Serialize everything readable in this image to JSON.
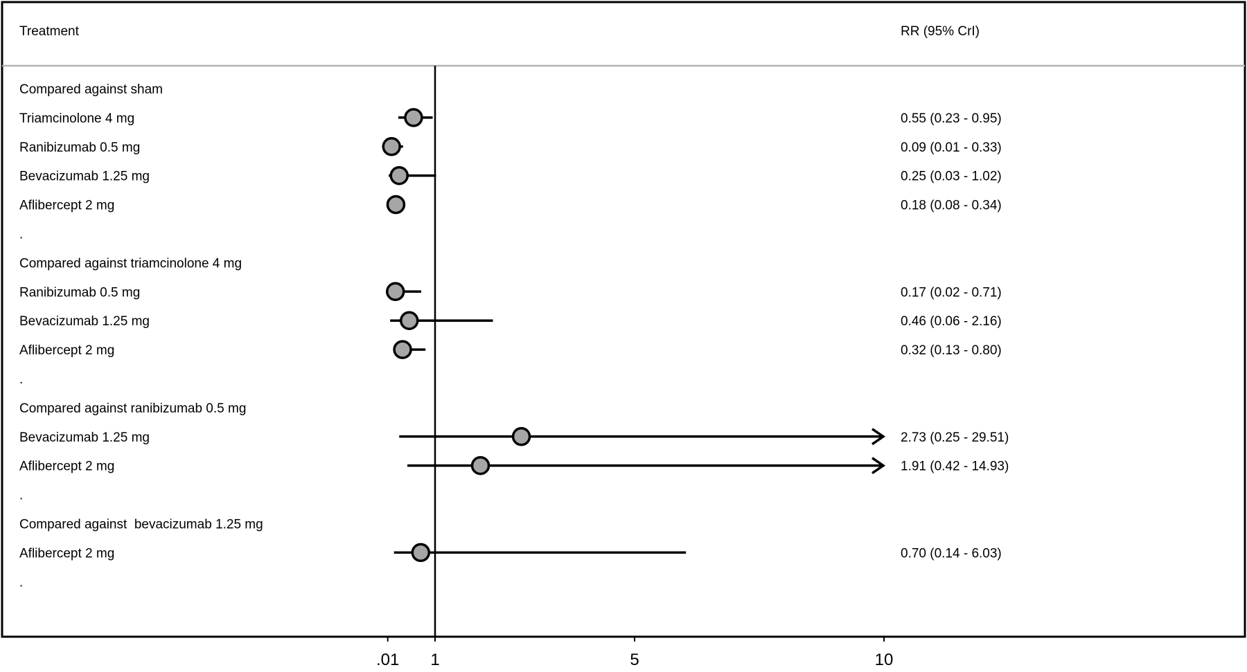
{
  "chart_data": {
    "type": "forest",
    "header": {
      "treatment": "Treatment",
      "estimate": "RR (95% CrI)"
    },
    "x_ticks": [
      {
        "value": 0.01,
        "label": ".01"
      },
      {
        "value": 1,
        "label": "1"
      },
      {
        "value": 5,
        "label": "5"
      },
      {
        "value": 10,
        "label": "10"
      }
    ],
    "reference_line": 1,
    "xlim": [
      0,
      10
    ],
    "rows": [
      {
        "type": "group",
        "label": "Compared against sham"
      },
      {
        "type": "item",
        "label": "Triamcinolone 4 mg",
        "rr": 0.55,
        "lo": 0.23,
        "hi": 0.95,
        "text": "0.55 (0.23 - 0.95)"
      },
      {
        "type": "item",
        "label": "Ranibizumab 0.5 mg",
        "rr": 0.09,
        "lo": 0.01,
        "hi": 0.33,
        "text": "0.09 (0.01 - 0.33)"
      },
      {
        "type": "item",
        "label": "Bevacizumab 1.25 mg",
        "rr": 0.25,
        "lo": 0.03,
        "hi": 1.02,
        "text": "0.25 (0.03 - 1.02)"
      },
      {
        "type": "item",
        "label": "Aflibercept 2 mg",
        "rr": 0.18,
        "lo": 0.08,
        "hi": 0.34,
        "text": "0.18 (0.08 - 0.34)"
      },
      {
        "type": "spacer",
        "label": "."
      },
      {
        "type": "group",
        "label": "Compared against triamcinolone 4 mg"
      },
      {
        "type": "item",
        "label": "Ranibizumab 0.5 mg",
        "rr": 0.17,
        "lo": 0.02,
        "hi": 0.71,
        "text": "0.17 (0.02 - 0.71)"
      },
      {
        "type": "item",
        "label": "Bevacizumab 1.25 mg",
        "rr": 0.46,
        "lo": 0.06,
        "hi": 2.16,
        "text": "0.46 (0.06 - 2.16)"
      },
      {
        "type": "item",
        "label": "Aflibercept 2 mg",
        "rr": 0.32,
        "lo": 0.13,
        "hi": 0.8,
        "text": "0.32 (0.13 - 0.80)"
      },
      {
        "type": "spacer",
        "label": "."
      },
      {
        "type": "group",
        "label": "Compared against ranibizumab 0.5 mg"
      },
      {
        "type": "item",
        "label": "Bevacizumab 1.25 mg",
        "rr": 2.73,
        "lo": 0.25,
        "hi": 29.51,
        "text": "2.73 (0.25 - 29.51)",
        "arrow_right": true
      },
      {
        "type": "item",
        "label": "Aflibercept 2 mg",
        "rr": 1.91,
        "lo": 0.42,
        "hi": 14.93,
        "text": "1.91 (0.42 - 14.93)",
        "arrow_right": true
      },
      {
        "type": "spacer",
        "label": "."
      },
      {
        "type": "group",
        "label": "Compared against  bevacizumab 1.25 mg"
      },
      {
        "type": "item",
        "label": "Aflibercept 2 mg",
        "rr": 0.7,
        "lo": 0.14,
        "hi": 6.03,
        "text": "0.70 (0.14 - 6.03)"
      },
      {
        "type": "spacer",
        "label": "."
      }
    ],
    "colors": {
      "marker_fill": "#a6a6a6",
      "stroke": "#000000",
      "separator": "#b3b3b3"
    }
  }
}
